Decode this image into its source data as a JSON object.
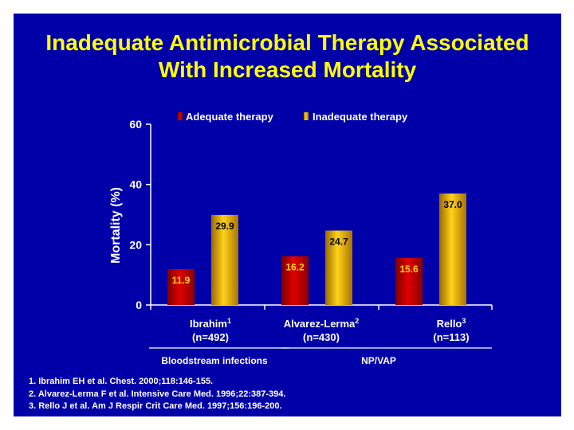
{
  "slide": {
    "title_line1": "Inadequate Antimicrobial Therapy Associated",
    "title_line2": "With Increased Mortality",
    "colors": {
      "background": "#0000a8",
      "title": "#ffff00",
      "adequate": "#d40000",
      "inadequate": "#e2b000",
      "text": "#ffffff"
    }
  },
  "chart_data": {
    "type": "bar",
    "ylabel": "Mortality (%)",
    "ylim": [
      0,
      60
    ],
    "yticks": [
      "0",
      "20",
      "40",
      "60"
    ],
    "legend": [
      "Adequate therapy",
      "Inadequate therapy"
    ],
    "groups": [
      {
        "name": "Ibrahim",
        "sup": "1",
        "n": "(n=492)"
      },
      {
        "name": "Alvarez-Lerma",
        "sup": "2",
        "n": "(n=430)"
      },
      {
        "name": "Rello",
        "sup": "3",
        "n": "(n=113)"
      }
    ],
    "series": [
      {
        "name": "Adequate therapy",
        "values": [
          11.9,
          16.2,
          15.6
        ],
        "labels": [
          "11.9",
          "16.2",
          "15.6"
        ]
      },
      {
        "name": "Inadequate therapy",
        "values": [
          29.9,
          24.7,
          37.0
        ],
        "labels": [
          "29.9",
          "24.7",
          "37.0"
        ]
      }
    ],
    "categories_bottom": [
      "Bloodstream infections",
      "NP/VAP"
    ]
  },
  "references": [
    "1. Ibrahim EH et al. Chest. 2000;118:146-155.",
    "2. Alvarez-Lerma F et al. Intensive Care Med. 1996;22:387-394.",
    "3. Rello J et al. Am J Respir Crit Care Med. 1997;156:196-200."
  ]
}
